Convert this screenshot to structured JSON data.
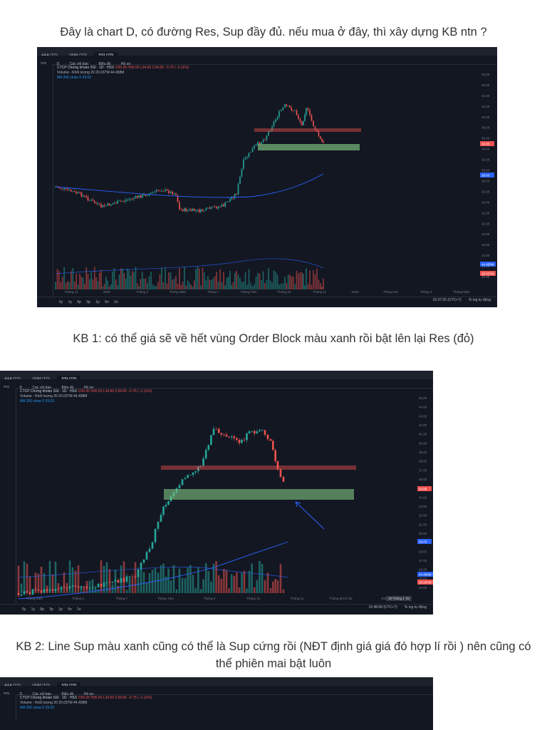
{
  "captions": {
    "q": "Đây là chart D, có đường Res, Sup đầy đủ. nếu mua ở đây, thì xây dựng KB ntn ?",
    "kb1": "KB 1: có thể giá sẽ về hết vùng Order Block màu xanh rồi bật lên lại Res (đỏ)",
    "kb2": "KB 2: Line Sup màu xanh cũng có thể là Sup cứng rồi (NĐT định giá giá đó hợp lí rồi ) nên cũng có thể phiên mai bật luôn"
  },
  "chart": {
    "tabs": [
      "AAA (1D)",
      "VNM (1D)",
      "SSI (1D)"
    ],
    "symbol": "SSI",
    "toolbar": [
      "D",
      "Các chỉ báo",
      "Biểu đồ",
      "Hồ sơ"
    ],
    "title": "CTCP Chứng khoán SSI · 1D · HSX",
    "ohlc": "O35.65 H35.65 L34.60 C34.85 −0.75 (−2.11%)",
    "volume": "Volume - Khối lượng 20  20.037M  44.458M",
    "ma": "MA 200 close 0  29.03",
    "timeframes": [
      "5y",
      "1y",
      "6p",
      "3p",
      "1p",
      "5n",
      "1n"
    ],
    "clock1": "15:37:26 (UTC+7)",
    "clock2": "15:48:08 (UTC+7)",
    "log": "%  log  tự động",
    "axis1": [
      "48.00",
      "46.00",
      "44.00",
      "42.00",
      "40.00",
      "38.00",
      "36.00",
      "34.00",
      "32.00",
      "30.00",
      "28.00",
      "26.00",
      "24.00",
      "22.00",
      "20.00",
      "18.00",
      "16.00",
      "14.00",
      "12.00",
      "10.00"
    ],
    "axis2": [
      "45.00",
      "44.00",
      "43.00",
      "42.00",
      "41.00",
      "40.00",
      "39.00",
      "38.00",
      "37.00",
      "36.00",
      "35.00",
      "34.00",
      "33.00",
      "32.00",
      "31.00",
      "30.00",
      "29.00",
      "28.00",
      "27.00",
      "26.00",
      "25.00",
      "24.00"
    ],
    "xaxis1": [
      "Tháng 11",
      "2025",
      "Tháng 3",
      "Tháng Năm",
      "Tháng 7",
      "Tháng Tám",
      "Tháng 10",
      "Tháng 11",
      "2026",
      "Tháng Hai",
      "Tháng 4",
      "Tháng Năm"
    ],
    "xaxis2": [
      "Tháng Năm",
      "Tháng 6",
      "Tháng 7",
      "Tháng Tám",
      "Tháng 9",
      "Tháng 10",
      "Tháng 11",
      "Tháng Mười hai",
      "2026"
    ],
    "price_tag": "34.85",
    "ma_tag": "29.03",
    "vol_tag1": "44.458M",
    "vol_tag2": "20.037M",
    "date_tag": "30 Tháng 1 '26"
  }
}
